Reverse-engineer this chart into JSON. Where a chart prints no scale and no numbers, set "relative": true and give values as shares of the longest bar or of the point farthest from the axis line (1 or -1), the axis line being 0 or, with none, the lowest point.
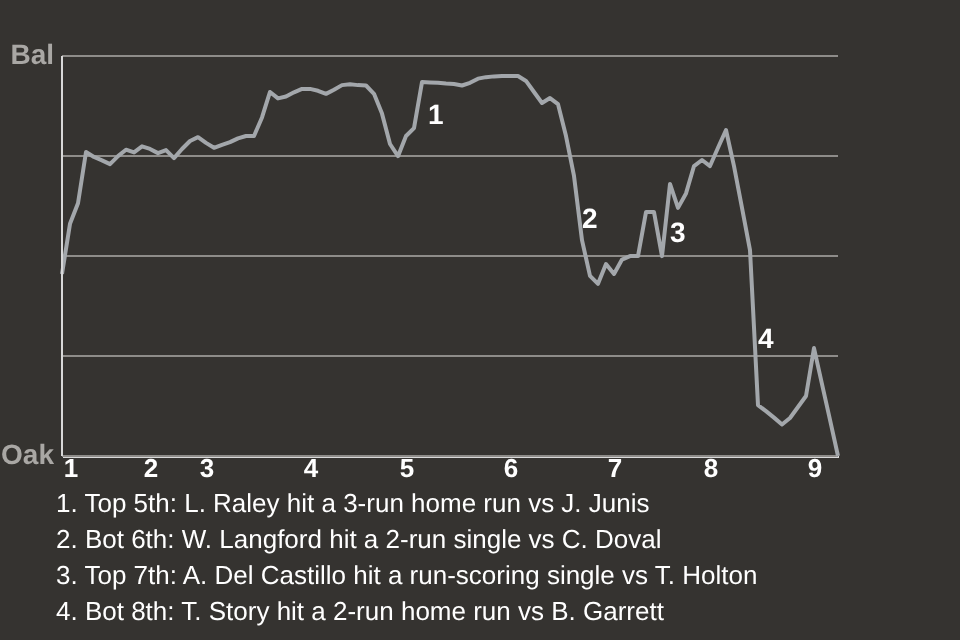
{
  "chart_data": {
    "type": "line",
    "relative": true,
    "grid": true,
    "categories": [
      null,
      "1",
      null,
      null,
      null,
      null,
      null,
      null,
      null,
      null,
      null,
      "2",
      null,
      null,
      null,
      null,
      null,
      null,
      "3",
      null,
      null,
      null,
      null,
      null,
      null,
      null,
      null,
      null,
      null,
      null,
      null,
      "4",
      null,
      null,
      null,
      null,
      null,
      null,
      null,
      null,
      null,
      null,
      null,
      "5",
      null,
      null,
      null,
      null,
      null,
      null,
      null,
      null,
      null,
      null,
      null,
      null,
      "6",
      null,
      null,
      null,
      null,
      null,
      null,
      null,
      null,
      null,
      null,
      null,
      null,
      "7",
      null,
      null,
      null,
      null,
      null,
      null,
      null,
      null,
      null,
      null,
      null,
      "8",
      null,
      null,
      null,
      null,
      null,
      null,
      null,
      null,
      null,
      null,
      null,
      null,
      "9",
      null,
      null,
      null
    ],
    "series": [
      {
        "color": "#a3a7ab",
        "values": [
          0.479,
          0.611,
          0.665,
          0.8,
          0.787,
          0.778,
          0.768,
          0.789,
          0.806,
          0.799,
          0.815,
          0.808,
          0.797,
          0.805,
          0.784,
          0.808,
          0.829,
          0.839,
          0.824,
          0.811,
          0.819,
          0.826,
          0.836,
          0.842,
          0.842,
          0.891,
          0.958,
          0.941,
          0.946,
          0.957,
          0.966,
          0.966,
          0.961,
          0.953,
          0.964,
          0.976,
          0.978,
          0.976,
          0.975,
          0.953,
          0.901,
          0.821,
          0.789,
          0.842,
          0.863,
          0.984,
          0.983,
          0.982,
          0.98,
          0.979,
          0.975,
          0.982,
          0.993,
          0.997,
          0.999,
          1,
          1,
          1,
          0.987,
          0.958,
          0.929,
          0.942,
          0.926,
          0.842,
          0.737,
          0.568,
          0.474,
          0.453,
          0.505,
          0.479,
          0.517,
          0.526,
          0.526,
          0.642,
          0.642,
          0.526,
          0.716,
          0.653,
          0.691,
          0.763,
          0.779,
          0.763,
          0.811,
          0.858,
          0.763,
          0.653,
          0.542,
          0.134,
          0.118,
          0.101,
          0.083,
          0.1,
          0.129,
          0.158,
          0.284,
          0.189,
          0.095,
          0
        ]
      }
    ],
    "annotations": [
      "Bal",
      "Oak",
      "1",
      "2",
      "3",
      "4",
      "1. Top 5th: L. Raley hit a 3-run home run vs J. Junis",
      "2. Bot 6th: W. Langford hit a 2-run single vs C. Doval",
      "3. Top 7th: A. Del Castillo hit a run-scoring single vs T. Holton",
      "4. Bot 8th: T. Story hit a 2-run home run vs B. Garrett"
    ]
  }
}
